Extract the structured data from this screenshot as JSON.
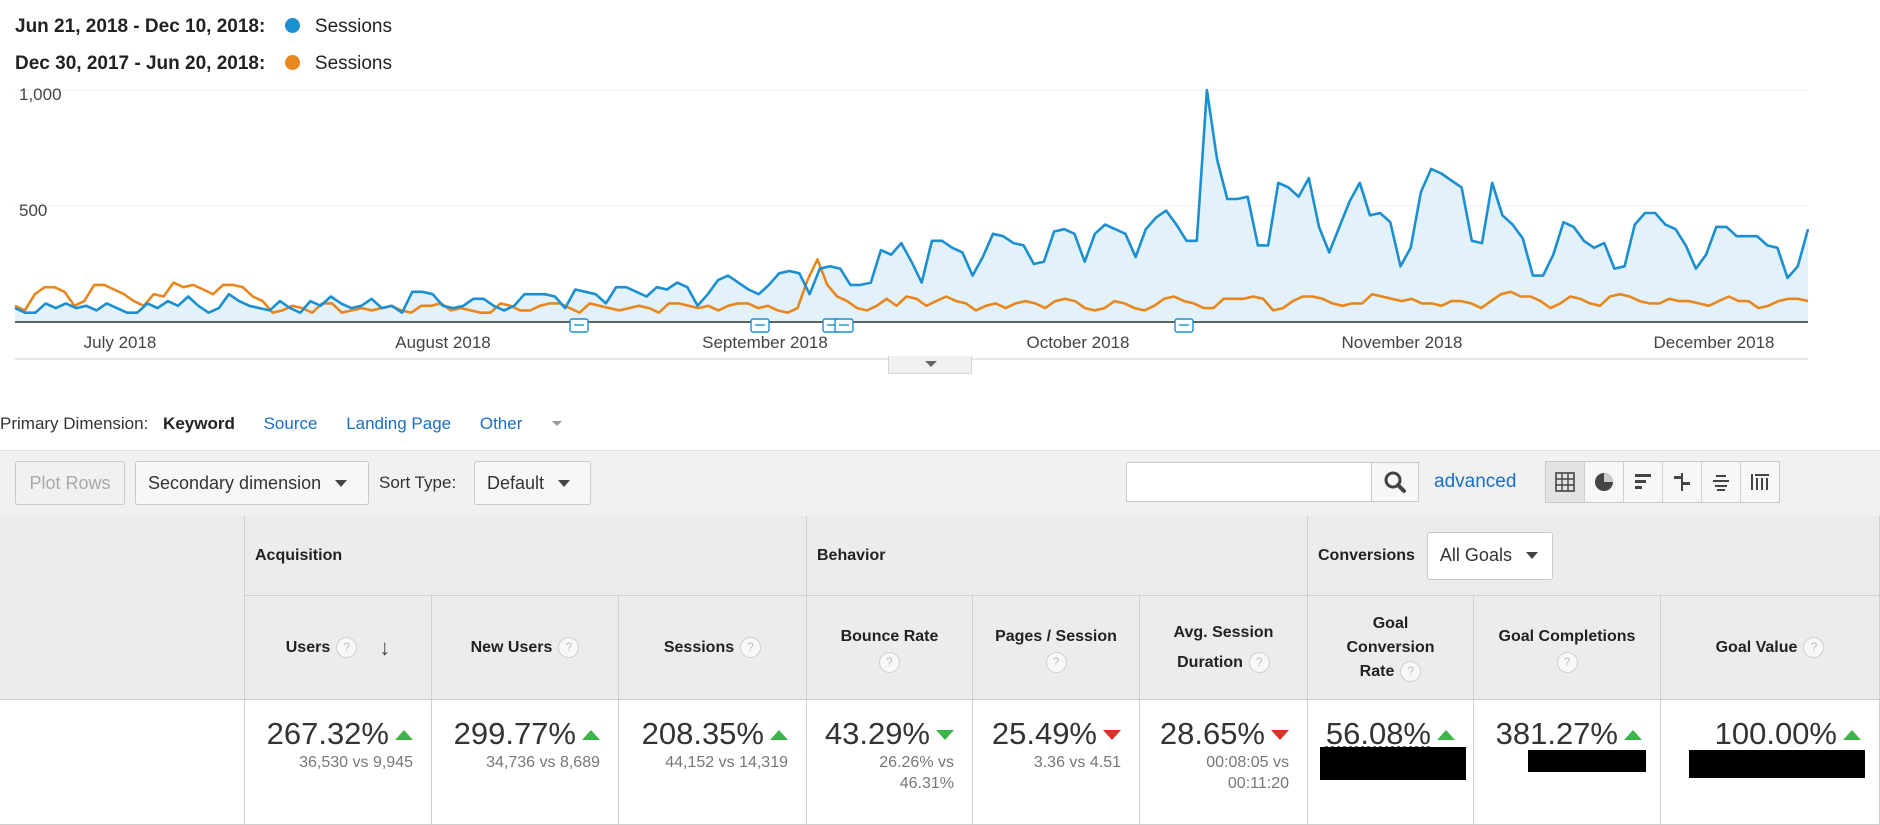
{
  "legend": {
    "current_range": "Jun 21, 2018 - Dec 10, 2018:",
    "current_metric": "Sessions",
    "current_color": "#1b8fd0",
    "previous_range": "Dec 30, 2017 - Jun 20, 2018:",
    "previous_metric": "Sessions",
    "previous_color": "#e8871e"
  },
  "chart_data": {
    "type": "area",
    "ylim": [
      0,
      1000
    ],
    "y_ticks": [
      "1,000",
      "500"
    ],
    "x_tick_labels": [
      "July 2018",
      "August 2018",
      "September 2018",
      "October 2018",
      "November 2018",
      "December 2018"
    ],
    "series": [
      {
        "name": "Sessions",
        "date_range": "Jun 21, 2018 - Dec 10, 2018",
        "color": "#1b8fd0",
        "values": [
          60,
          40,
          40,
          80,
          60,
          80,
          60,
          70,
          50,
          80,
          60,
          40,
          40,
          80,
          60,
          90,
          70,
          110,
          70,
          40,
          60,
          120,
          90,
          70,
          60,
          50,
          90,
          60,
          40,
          90,
          70,
          110,
          80,
          60,
          70,
          100,
          60,
          70,
          40,
          130,
          130,
          120,
          70,
          60,
          70,
          100,
          100,
          70,
          50,
          70,
          120,
          120,
          120,
          110,
          60,
          140,
          130,
          120,
          80,
          150,
          150,
          130,
          110,
          150,
          140,
          170,
          150,
          70,
          120,
          180,
          200,
          170,
          140,
          120,
          160,
          210,
          220,
          210,
          120,
          230,
          240,
          230,
          160,
          160,
          170,
          310,
          290,
          340,
          260,
          170,
          350,
          350,
          320,
          300,
          200,
          280,
          380,
          370,
          340,
          330,
          250,
          260,
          390,
          400,
          380,
          260,
          380,
          420,
          400,
          380,
          280,
          400,
          450,
          480,
          420,
          350,
          350,
          1000,
          700,
          530,
          530,
          540,
          330,
          330,
          600,
          580,
          540,
          620,
          410,
          300,
          410,
          520,
          600,
          460,
          470,
          430,
          240,
          320,
          560,
          660,
          640,
          610,
          580,
          350,
          340,
          600,
          460,
          420,
          360,
          200,
          200,
          290,
          430,
          410,
          350,
          320,
          340,
          230,
          240,
          420,
          470,
          470,
          420,
          400,
          330,
          230,
          290,
          410,
          410,
          370,
          370,
          370,
          330,
          320,
          190,
          240,
          400
        ]
      },
      {
        "name": "Sessions",
        "date_range": "Dec 30, 2017 - Jun 20, 2018",
        "color": "#e8871e",
        "values": [
          70,
          50,
          120,
          150,
          150,
          130,
          70,
          90,
          160,
          160,
          140,
          120,
          90,
          70,
          120,
          110,
          170,
          150,
          160,
          140,
          120,
          160,
          160,
          150,
          110,
          90,
          40,
          50,
          70,
          60,
          40,
          80,
          80,
          40,
          50,
          60,
          50,
          60,
          70,
          50,
          40,
          70,
          70,
          80,
          50,
          60,
          50,
          40,
          40,
          80,
          70,
          50,
          50,
          70,
          80,
          80,
          60,
          40,
          80,
          70,
          60,
          50,
          60,
          70,
          60,
          40,
          80,
          80,
          70,
          60,
          70,
          50,
          70,
          80,
          80,
          60,
          70,
          50,
          40,
          60,
          180,
          270,
          160,
          110,
          90,
          60,
          50,
          70,
          100,
          70,
          110,
          100,
          70,
          90,
          110,
          90,
          80,
          50,
          70,
          80,
          60,
          80,
          90,
          80,
          60,
          90,
          100,
          90,
          60,
          50,
          60,
          90,
          80,
          60,
          50,
          70,
          100,
          110,
          90,
          80,
          60,
          60,
          100,
          100,
          100,
          110,
          100,
          50,
          60,
          90,
          110,
          110,
          100,
          80,
          70,
          80,
          80,
          120,
          110,
          100,
          90,
          100,
          80,
          80,
          70,
          90,
          90,
          80,
          60,
          90,
          120,
          130,
          110,
          110,
          90,
          60,
          80,
          110,
          100,
          80,
          70,
          110,
          120,
          110,
          90,
          80,
          80,
          100,
          90,
          90,
          80,
          70,
          90,
          110,
          90,
          90,
          60,
          70,
          90,
          100,
          100,
          90
        ]
      }
    ],
    "annotations": 5
  },
  "primary_dimension": {
    "label": "Primary Dimension:",
    "active": "Keyword",
    "options": [
      "Source",
      "Landing Page"
    ],
    "other": "Other"
  },
  "toolbar": {
    "plot_rows": "Plot Rows",
    "secondary_dimension": "Secondary dimension",
    "sort_type_label": "Sort Type:",
    "sort_type_value": "Default",
    "search_placeholder": "",
    "advanced": "advanced",
    "view_icons": [
      "table-view-icon",
      "pie-view-icon",
      "performance-view-icon",
      "comparison-view-icon",
      "term-cloud-icon",
      "pivot-view-icon"
    ]
  },
  "table": {
    "groups": {
      "acquisition": "Acquisition",
      "behavior": "Behavior",
      "conversions": "Conversions",
      "goal_select": "All Goals"
    },
    "columns": [
      {
        "header": "Users",
        "pct": "267.32%",
        "dir": "up",
        "detail": "36,530 vs 9,945",
        "sorted": true
      },
      {
        "header": "New Users",
        "pct": "299.77%",
        "dir": "up",
        "detail": "34,736 vs 8,689"
      },
      {
        "header": "Sessions",
        "pct": "208.35%",
        "dir": "up",
        "detail": "44,152 vs 14,319"
      },
      {
        "header": "Bounce Rate",
        "pct": "43.29%",
        "dir": "down-good",
        "detail_1": "26.26% vs",
        "detail_2": "46.31%"
      },
      {
        "header": "Pages / Session",
        "pct": "25.49%",
        "dir": "down",
        "detail": "3.36 vs 4.51"
      },
      {
        "header_1": "Avg. Session",
        "header_2": "Duration",
        "pct": "28.65%",
        "dir": "down",
        "detail_1": "00:08:05 vs",
        "detail_2": "00:11:20"
      },
      {
        "header_1": "Goal",
        "header_2": "Conversion",
        "header_3": "Rate",
        "pct": "56.08%",
        "dir": "up"
      },
      {
        "header": "Goal Completions",
        "pct": "381.27%",
        "dir": "up"
      },
      {
        "header": "Goal Value",
        "pct": "100.00%",
        "dir": "up"
      }
    ]
  }
}
